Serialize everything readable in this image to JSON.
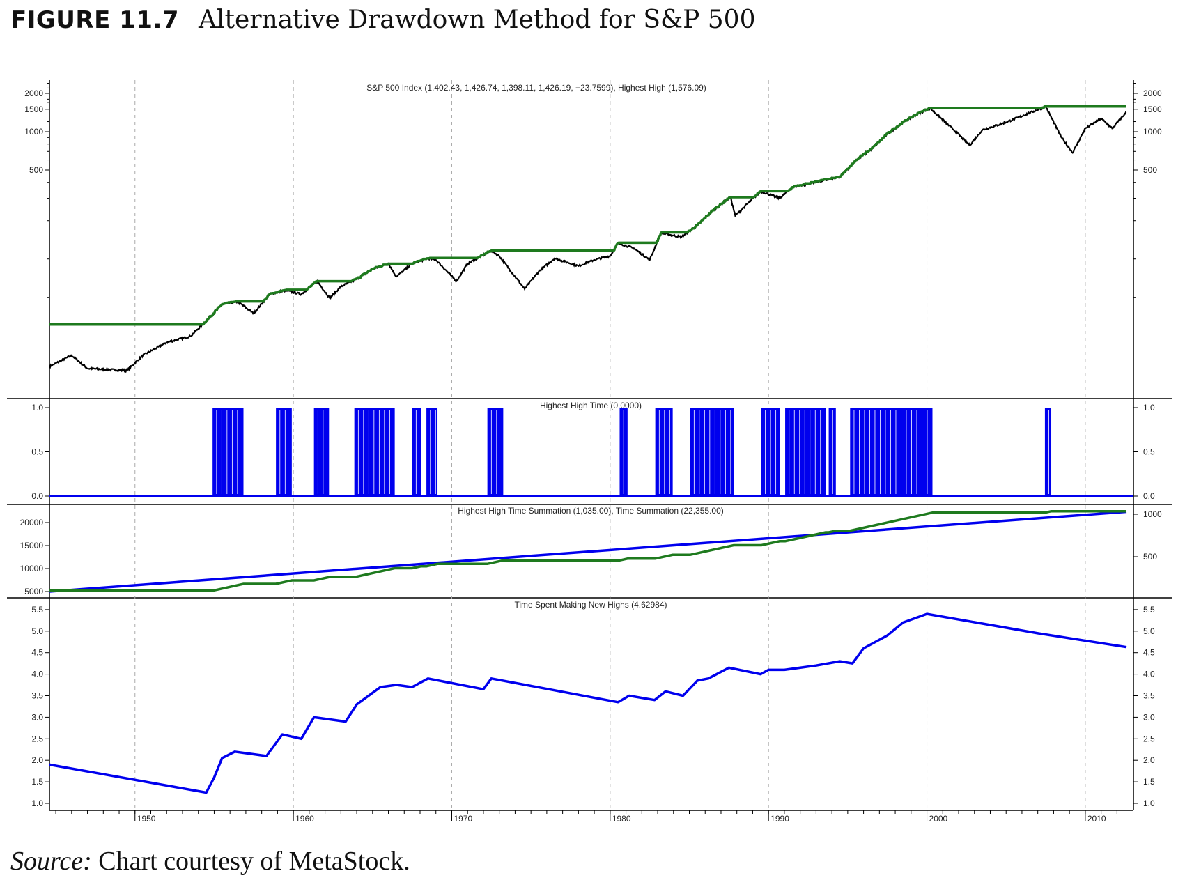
{
  "figure": {
    "number": "FIGURE 11.7",
    "title": "Alternative Drawdown Method for S&P 500"
  },
  "source": {
    "label": "Source:",
    "text": " Chart courtesy of MetaStock."
  },
  "colors": {
    "price": "#000000",
    "highest_high": "#1e7a1e",
    "blue": "#0000ee",
    "grid": "#aaaaaa"
  },
  "chart_data": [
    {
      "type": "line",
      "title": "S&P 500 Index  (1,402.43, 1,426.74, 1,398.11, 1,426.19, +23.7599), Highest High (1,576.09)",
      "yscale": "log",
      "yticks": [
        2000,
        1500,
        1000,
        500
      ],
      "xlim": [
        1944.6,
        2012.6
      ],
      "initial_highest_high": 30.6,
      "series": [
        {
          "name": "S&P 500 Index",
          "color": "#000000",
          "points": [
            [
              1944.6,
              14.3
            ],
            [
              1946,
              17.5
            ],
            [
              1947,
              13.8
            ],
            [
              1949.5,
              13.3
            ],
            [
              1950.5,
              17.5
            ],
            [
              1952,
              22.1
            ],
            [
              1953.5,
              24.7
            ],
            [
              1954.5,
              32.6
            ],
            [
              1955.5,
              44.1
            ],
            [
              1956.5,
              46
            ],
            [
              1957.5,
              37.4
            ],
            [
              1958.5,
              52.9
            ],
            [
              1959.5,
              56.6
            ],
            [
              1960.5,
              52.9
            ],
            [
              1961.5,
              66.9
            ],
            [
              1962.3,
              49.3
            ],
            [
              1963,
              60.7
            ],
            [
              1964,
              69.7
            ],
            [
              1965,
              83.4
            ],
            [
              1966,
              91.8
            ],
            [
              1966.5,
              72.7
            ],
            [
              1967.5,
              91.8
            ],
            [
              1968.5,
              101.2
            ],
            [
              1969,
              98.4
            ],
            [
              1970.3,
              66.9
            ],
            [
              1971,
              91.8
            ],
            [
              1972.5,
              116.2
            ],
            [
              1973,
              105.5
            ],
            [
              1974.6,
              58.2
            ],
            [
              1975.5,
              80
            ],
            [
              1976.5,
              101.2
            ],
            [
              1978,
              88.1
            ],
            [
              1979,
              98.4
            ],
            [
              1980,
              105.5
            ],
            [
              1980.5,
              133.5
            ],
            [
              1981.5,
              121.2
            ],
            [
              1982.5,
              98.4
            ],
            [
              1983.2,
              159.9
            ],
            [
              1984.5,
              149
            ],
            [
              1985.5,
              183.5
            ],
            [
              1986.5,
              241.7
            ],
            [
              1987.6,
              306
            ],
            [
              1987.9,
              219
            ],
            [
              1988.5,
              259
            ],
            [
              1989.5,
              341
            ],
            [
              1990.7,
              300
            ],
            [
              1991.5,
              366
            ],
            [
              1993,
              403
            ],
            [
              1994.5,
              438
            ],
            [
              1995.5,
              594
            ],
            [
              1996.5,
              730
            ],
            [
              1997.5,
              963
            ],
            [
              1998.5,
              1185
            ],
            [
              1999.5,
              1399
            ],
            [
              2000.2,
              1527
            ],
            [
              2001.7,
              1032
            ],
            [
              2002.7,
              783
            ],
            [
              2003.5,
              1032
            ],
            [
              2005,
              1185
            ],
            [
              2007.5,
              1576.09
            ],
            [
              2008.5,
              899
            ],
            [
              2009.2,
              682
            ],
            [
              2010,
              1061
            ],
            [
              2011,
              1270
            ],
            [
              2011.7,
              1061
            ],
            [
              2012.6,
              1426.19
            ]
          ]
        },
        {
          "name": "Highest High",
          "color": "#1e7a1e",
          "derived": "running maximum of S&P 500 Index"
        }
      ]
    },
    {
      "type": "bar",
      "title": "Highest High Time (0.0000)",
      "yticks": [
        "1.0",
        "0.5",
        "0.0"
      ],
      "ylim": [
        0,
        1
      ],
      "on_intervals": [
        [
          1954.9,
          1956.85
        ],
        [
          1958.9,
          1959.9
        ],
        [
          1961.3,
          1962.25
        ],
        [
          1963.85,
          1966.4
        ],
        [
          1967.5,
          1968.05
        ],
        [
          1968.4,
          1969.1
        ],
        [
          1972.25,
          1973.25
        ],
        [
          1980.6,
          1981.1
        ],
        [
          1982.85,
          1983.95
        ],
        [
          1985.05,
          1987.8
        ],
        [
          1989.55,
          1990.7
        ],
        [
          1991.05,
          1993.6
        ],
        [
          1993.8,
          1994.25
        ],
        [
          1995.15,
          2000.35
        ],
        [
          2007.45,
          2007.85
        ]
      ]
    },
    {
      "type": "line",
      "title": "Highest High Time Summation (1,035.00), Time Summation (22,355.00)",
      "yticks_left": [
        "20000",
        "15000",
        "10000",
        "5000"
      ],
      "yticks_right": [
        "1000",
        "500"
      ],
      "series": [
        {
          "name": "Time Summation",
          "axis": "left",
          "color": "#0000ee",
          "start": 5000,
          "end": 22355
        },
        {
          "name": "Highest High Time Summation",
          "axis": "right",
          "color": "#1e7a1e",
          "start": 100,
          "end": 1035
        }
      ]
    },
    {
      "type": "line",
      "title": "Time Spent Making New Highs (4.62984)",
      "yticks": [
        "5.5",
        "5.0",
        "4.5",
        "4.0",
        "3.5",
        "3.0",
        "2.5",
        "2.0",
        "1.5",
        "1.0"
      ],
      "ylim": [
        1.0,
        5.5
      ],
      "series": [
        {
          "name": "Time Spent Making New Highs",
          "color": "#0000ee",
          "points": [
            [
              1944.6,
              1.9
            ],
            [
              1954.5,
              1.25
            ],
            [
              1955,
              1.6
            ],
            [
              1955.5,
              2.05
            ],
            [
              1956.3,
              2.2
            ],
            [
              1958.3,
              2.1
            ],
            [
              1959.3,
              2.6
            ],
            [
              1960.5,
              2.5
            ],
            [
              1961.3,
              3.0
            ],
            [
              1963.3,
              2.9
            ],
            [
              1964,
              3.3
            ],
            [
              1965.5,
              3.7
            ],
            [
              1966.5,
              3.75
            ],
            [
              1967.5,
              3.7
            ],
            [
              1968.5,
              3.9
            ],
            [
              1972,
              3.65
            ],
            [
              1972.5,
              3.9
            ],
            [
              1980.5,
              3.35
            ],
            [
              1981.2,
              3.5
            ],
            [
              1982.8,
              3.4
            ],
            [
              1983.5,
              3.6
            ],
            [
              1984.6,
              3.5
            ],
            [
              1985.5,
              3.85
            ],
            [
              1986.2,
              3.9
            ],
            [
              1987.5,
              4.15
            ],
            [
              1989.5,
              4.0
            ],
            [
              1990,
              4.1
            ],
            [
              1991,
              4.1
            ],
            [
              1993,
              4.2
            ],
            [
              1994.5,
              4.3
            ],
            [
              1995.3,
              4.25
            ],
            [
              1996,
              4.6
            ],
            [
              1997.5,
              4.9
            ],
            [
              1998.5,
              5.2
            ],
            [
              2000,
              5.4
            ],
            [
              2007,
              4.95
            ],
            [
              2012.6,
              4.63
            ]
          ]
        }
      ]
    }
  ],
  "x_axis": {
    "labels": [
      "1950",
      "1960",
      "1970",
      "1980",
      "1990",
      "2000",
      "2010"
    ],
    "years": [
      1950,
      1960,
      1970,
      1980,
      1990,
      2000,
      2010
    ]
  }
}
